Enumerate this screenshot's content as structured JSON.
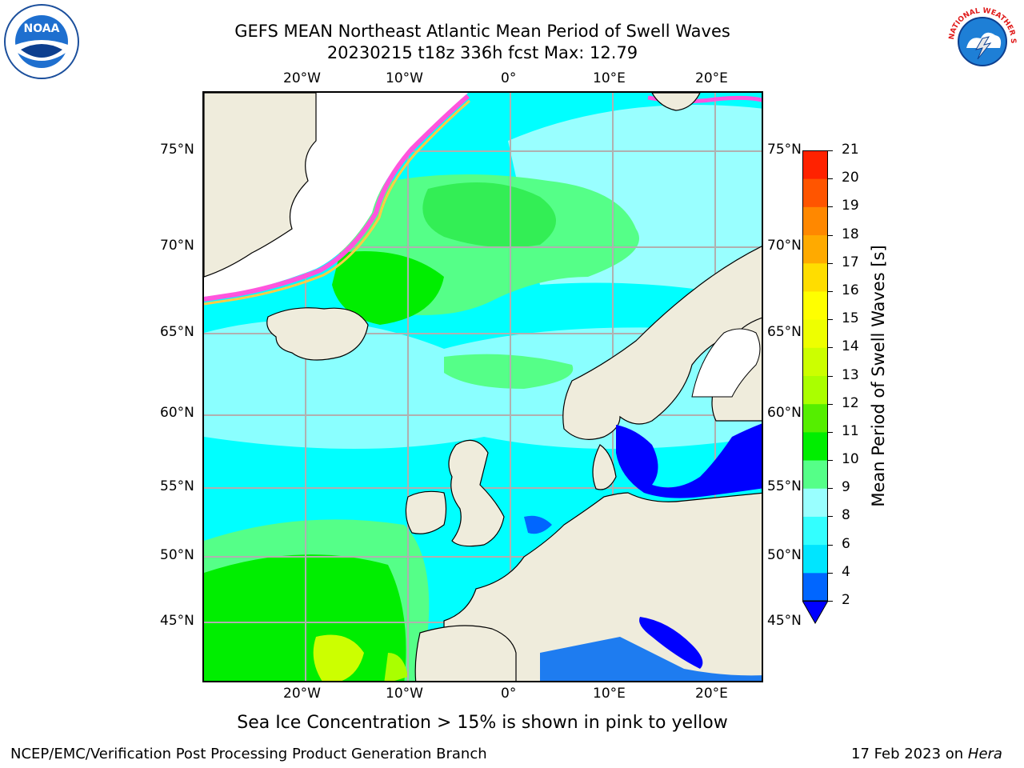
{
  "header": {
    "title_line1": "GEFS MEAN Northeast Atlantic Mean Period of Swell Waves",
    "title_line2": "20230215 t18z 336h fcst   Max: 12.79"
  },
  "logos": {
    "left": {
      "name": "noaa-logo",
      "text": "NOAA"
    },
    "right": {
      "name": "nws-logo",
      "text": "NATIONAL WEATHER SERVICE"
    }
  },
  "map": {
    "lon_labels": [
      "20°W",
      "10°W",
      "0°",
      "10°E",
      "20°E"
    ],
    "lat_labels_left": [
      "75°N",
      "70°N",
      "65°N",
      "60°N",
      "55°N",
      "50°N",
      "45°N"
    ],
    "lat_labels_right": [
      "75°N",
      "70°N",
      "65°N",
      "60°N",
      "55°N",
      "50°N",
      "45°N"
    ],
    "colors": {
      "land": "#efecdc",
      "ocean_base": "#00ffff",
      "grid": "#b0b0b0"
    }
  },
  "colorbar": {
    "title": "Mean Period of Swell Waves [s]",
    "ticks": [
      "2",
      "4",
      "6",
      "8",
      "9",
      "10",
      "11",
      "12",
      "13",
      "14",
      "15",
      "16",
      "17",
      "18",
      "19",
      "20",
      "21"
    ],
    "colors": [
      "#0066ff",
      "#00e5ff",
      "#33ffff",
      "#99ffff",
      "#55ff88",
      "#00ee00",
      "#55ee00",
      "#aaff00",
      "#ccff00",
      "#eeff00",
      "#ffff00",
      "#ffdd00",
      "#ffaa00",
      "#ff8800",
      "#ff5500",
      "#ff2200"
    ],
    "extend_color": "#0000ff"
  },
  "note": "Sea Ice Concentration > 15% is shown in pink to yellow",
  "footer": {
    "left": "NCEP/EMC/Verification Post Processing Product Generation Branch",
    "right_date": "17 Feb 2023 on",
    "right_host": "Hera"
  }
}
